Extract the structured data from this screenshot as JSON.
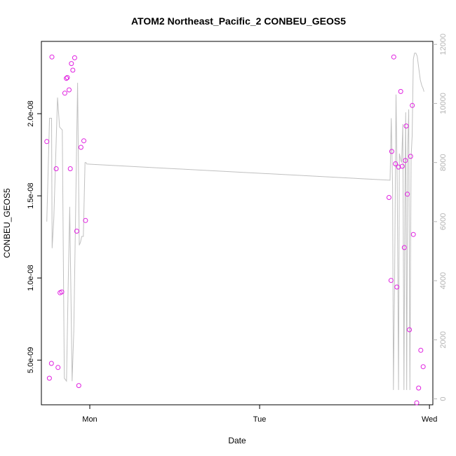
{
  "chart_data": {
    "type": "scatter",
    "title": "ATOM2 Northeast_Pacific_2 CONBEU_GEOS5",
    "xlabel": "Date",
    "ylabel": "CONBEU_GEOS5",
    "xlim": [
      -0.285,
      2.02
    ],
    "ylim": [
      2.28e-09,
      2.44e-08
    ],
    "y2lim": [
      -200,
      12100
    ],
    "x_ticks": [
      {
        "value": 0,
        "label": "Mon"
      },
      {
        "value": 1,
        "label": "Tue"
      },
      {
        "value": 2,
        "label": "Wed"
      }
    ],
    "y_ticks": [
      {
        "value": 5e-09,
        "label": "5.0e-09"
      },
      {
        "value": 1e-08,
        "label": "1.0e-08"
      },
      {
        "value": 1.5e-08,
        "label": "1.5e-08"
      },
      {
        "value": 2e-08,
        "label": "2.0e-08"
      }
    ],
    "y2_ticks": [
      {
        "value": 0,
        "label": "0"
      },
      {
        "value": 2000,
        "label": "2000"
      },
      {
        "value": 4000,
        "label": "4000"
      },
      {
        "value": 6000,
        "label": "6000"
      },
      {
        "value": 8000,
        "label": "8000"
      },
      {
        "value": 10000,
        "label": "10000"
      },
      {
        "value": 12000,
        "label": "12000"
      }
    ],
    "grid": false,
    "points_color": "#e020e0",
    "line_color": "#c0c0c0",
    "series": [
      {
        "kind": "points",
        "axis": "left",
        "x": [
          -0.253,
          -0.238,
          -0.226,
          -0.223,
          -0.198,
          -0.187,
          -0.175,
          -0.165,
          -0.147,
          -0.138,
          -0.132,
          -0.122,
          -0.115,
          -0.108,
          -0.1,
          -0.089,
          -0.077,
          -0.065,
          -0.052,
          -0.035,
          -0.025,
          1.762,
          1.774,
          1.778,
          1.79,
          1.8,
          1.808,
          1.818,
          1.831,
          1.84,
          1.852,
          1.858,
          1.863,
          1.87,
          1.882,
          1.889,
          1.899,
          1.905,
          1.925,
          1.936,
          1.949,
          1.963
        ],
        "y": [
          1.83e-08,
          3.9e-09,
          4.8e-09,
          2.345e-08,
          1.665e-08,
          4.55e-09,
          9.1e-09,
          9.15e-09,
          2.125e-08,
          2.215e-08,
          2.22e-08,
          2.145e-08,
          1.665e-08,
          2.305e-08,
          2.265e-08,
          2.34e-08,
          1.285e-08,
          3.45e-09,
          1.795e-08,
          1.835e-08,
          1.35e-08,
          1.49e-08,
          9.85e-09,
          1.77e-08,
          2.345e-08,
          1.695e-08,
          9.45e-09,
          1.675e-08,
          2.135e-08,
          1.68e-08,
          1.185e-08,
          1.715e-08,
          1.925e-08,
          1.51e-08,
          6.85e-09,
          1.74e-08,
          2.05e-08,
          1.265e-08,
          2.4e-09,
          3.3e-09,
          5.6e-09,
          4.6e-09
        ]
      },
      {
        "kind": "line",
        "axis": "right",
        "x": [
          -0.253,
          -0.237,
          -0.225,
          -0.222,
          -0.212,
          -0.19,
          -0.178,
          -0.162,
          -0.15,
          -0.137,
          -0.128,
          -0.118,
          -0.104,
          -0.094,
          -0.085,
          -0.072,
          -0.062,
          -0.055,
          -0.047,
          -0.038,
          -0.028,
          -0.022,
          -0.018,
          1.768,
          1.775,
          1.783,
          1.788,
          1.795,
          1.803,
          1.81,
          1.818,
          1.823,
          1.83,
          1.836,
          1.843,
          1.85,
          1.856,
          1.86,
          1.866,
          1.872,
          1.878,
          1.885,
          1.892,
          1.898,
          1.905,
          1.912,
          1.92,
          1.928,
          1.937,
          1.946,
          1.955,
          1.963,
          1.968
        ],
        "y": [
          6000,
          9500,
          9500,
          5100,
          6100,
          10200,
          9200,
          9100,
          700,
          600,
          3600,
          6500,
          600,
          2300,
          5700,
          10700,
          5200,
          5300,
          5500,
          5500,
          8000,
          8000,
          7950,
          7400,
          9500,
          7200,
          300,
          4000,
          10300,
          7300,
          300,
          8300,
          8100,
          8000,
          9300,
          300,
          7200,
          9700,
          300,
          8400,
          9800,
          300,
          8200,
          8900,
          11500,
          11700,
          11700,
          11600,
          11200,
          10800,
          10600,
          10500,
          10400
        ]
      }
    ]
  }
}
